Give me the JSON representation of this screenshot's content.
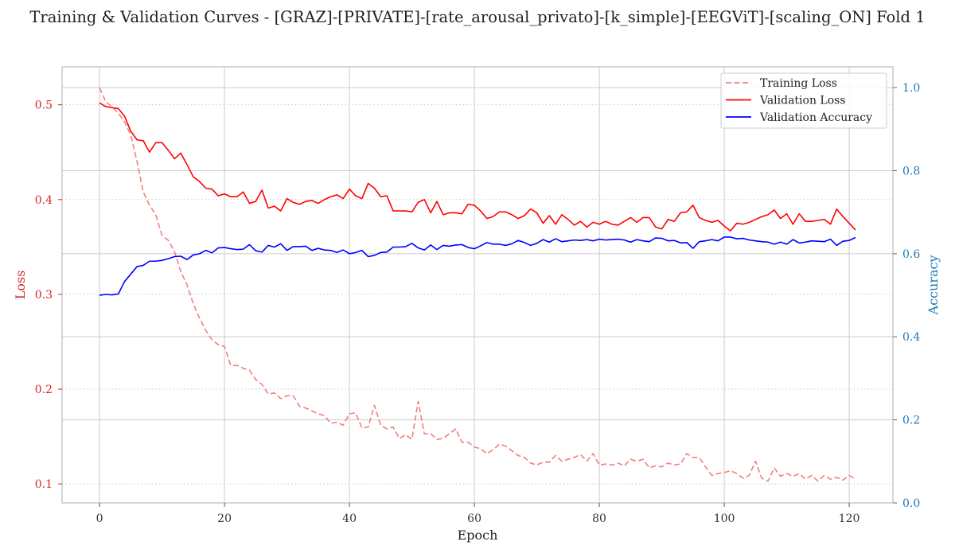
{
  "chart_data": {
    "type": "line",
    "title": "Training & Validation Curves - [GRAZ]-[PRIVATE]-[rate_arousal_privato]-[k_simple]-[EEGViT]-[scaling_ON] Fold 1",
    "xlabel": "Epoch",
    "ylabel_left": "Loss",
    "ylabel_right": "Accuracy",
    "xlim": [
      -6,
      127
    ],
    "ylim_left": [
      0.08,
      0.54
    ],
    "ylim_right": [
      0.0,
      1.05
    ],
    "xticks": [
      0,
      20,
      40,
      60,
      80,
      100,
      120
    ],
    "yticks_left": [
      0.1,
      0.2,
      0.3,
      0.4,
      0.5
    ],
    "yticks_right": [
      0.0,
      0.2,
      0.4,
      0.6,
      0.8,
      1.0
    ],
    "grid": true,
    "legend_position": "top-right",
    "colors": {
      "loss_axis": "#d62728",
      "accuracy_axis": "#1f77b4",
      "training_loss": "#f08080",
      "validation_loss": "#ff0000",
      "validation_accuracy": "#0000ff"
    },
    "series": [
      {
        "name": "Training Loss",
        "axis": "left",
        "style": "dashed",
        "x_start": 0,
        "values": [
          0.518,
          0.503,
          0.498,
          0.491,
          0.482,
          0.468,
          0.44,
          0.408,
          0.394,
          0.384,
          0.362,
          0.357,
          0.345,
          0.324,
          0.31,
          0.29,
          0.275,
          0.262,
          0.252,
          0.247,
          0.245,
          0.225,
          0.225,
          0.222,
          0.22,
          0.21,
          0.205,
          0.195,
          0.196,
          0.19,
          0.193,
          0.193,
          0.182,
          0.18,
          0.177,
          0.174,
          0.172,
          0.164,
          0.165,
          0.162,
          0.174,
          0.175,
          0.159,
          0.16,
          0.183,
          0.162,
          0.158,
          0.16,
          0.148,
          0.152,
          0.147,
          0.187,
          0.153,
          0.153,
          0.147,
          0.148,
          0.153,
          0.158,
          0.144,
          0.144,
          0.139,
          0.137,
          0.132,
          0.136,
          0.142,
          0.14,
          0.135,
          0.13,
          0.128,
          0.122,
          0.12,
          0.123,
          0.123,
          0.13,
          0.124,
          0.126,
          0.128,
          0.131,
          0.124,
          0.132,
          0.12,
          0.121,
          0.12,
          0.122,
          0.119,
          0.126,
          0.124,
          0.126,
          0.117,
          0.119,
          0.118,
          0.122,
          0.12,
          0.121,
          0.132,
          0.128,
          0.128,
          0.118,
          0.109,
          0.111,
          0.112,
          0.114,
          0.111,
          0.106,
          0.109,
          0.124,
          0.106,
          0.103,
          0.117,
          0.108,
          0.111,
          0.108,
          0.111,
          0.105,
          0.109,
          0.103,
          0.109,
          0.105,
          0.107,
          0.104,
          0.109,
          0.105
        ]
      },
      {
        "name": "Validation Loss",
        "axis": "left",
        "style": "solid",
        "x_start": 0,
        "values": [
          0.502,
          0.498,
          0.497,
          0.496,
          0.488,
          0.472,
          0.463,
          0.462,
          0.45,
          0.46,
          0.46,
          0.452,
          0.443,
          0.449,
          0.437,
          0.424,
          0.419,
          0.412,
          0.411,
          0.404,
          0.406,
          0.403,
          0.403,
          0.408,
          0.396,
          0.398,
          0.41,
          0.391,
          0.393,
          0.388,
          0.401,
          0.397,
          0.395,
          0.398,
          0.399,
          0.396,
          0.4,
          0.403,
          0.405,
          0.401,
          0.411,
          0.404,
          0.401,
          0.417,
          0.412,
          0.403,
          0.404,
          0.388,
          0.388,
          0.388,
          0.387,
          0.397,
          0.4,
          0.386,
          0.398,
          0.384,
          0.386,
          0.386,
          0.385,
          0.395,
          0.394,
          0.388,
          0.38,
          0.382,
          0.387,
          0.387,
          0.384,
          0.38,
          0.383,
          0.39,
          0.386,
          0.375,
          0.383,
          0.374,
          0.384,
          0.379,
          0.373,
          0.377,
          0.371,
          0.376,
          0.374,
          0.377,
          0.374,
          0.373,
          0.377,
          0.381,
          0.376,
          0.381,
          0.381,
          0.371,
          0.369,
          0.379,
          0.377,
          0.386,
          0.387,
          0.394,
          0.381,
          0.378,
          0.376,
          0.378,
          0.372,
          0.367,
          0.375,
          0.374,
          0.376,
          0.379,
          0.382,
          0.384,
          0.389,
          0.38,
          0.385,
          0.374,
          0.385,
          0.377,
          0.377,
          0.378,
          0.379,
          0.374,
          0.39,
          0.382,
          0.375,
          0.368
        ]
      },
      {
        "name": "Validation Accuracy",
        "axis": "right",
        "style": "solid",
        "x_start": 0,
        "values": [
          0.5,
          0.502,
          0.501,
          0.503,
          0.533,
          0.551,
          0.569,
          0.572,
          0.582,
          0.582,
          0.584,
          0.588,
          0.593,
          0.594,
          0.586,
          0.597,
          0.6,
          0.608,
          0.602,
          0.614,
          0.615,
          0.612,
          0.61,
          0.611,
          0.622,
          0.607,
          0.604,
          0.62,
          0.616,
          0.624,
          0.608,
          0.617,
          0.617,
          0.618,
          0.608,
          0.613,
          0.609,
          0.608,
          0.603,
          0.609,
          0.6,
          0.603,
          0.608,
          0.593,
          0.596,
          0.603,
          0.604,
          0.616,
          0.616,
          0.617,
          0.625,
          0.614,
          0.609,
          0.621,
          0.61,
          0.62,
          0.618,
          0.621,
          0.622,
          0.615,
          0.612,
          0.619,
          0.627,
          0.623,
          0.623,
          0.62,
          0.624,
          0.632,
          0.627,
          0.62,
          0.625,
          0.634,
          0.628,
          0.636,
          0.629,
          0.631,
          0.633,
          0.632,
          0.634,
          0.631,
          0.635,
          0.633,
          0.634,
          0.635,
          0.633,
          0.628,
          0.634,
          0.631,
          0.629,
          0.638,
          0.637,
          0.631,
          0.632,
          0.626,
          0.627,
          0.613,
          0.629,
          0.631,
          0.634,
          0.631,
          0.64,
          0.64,
          0.636,
          0.637,
          0.633,
          0.631,
          0.629,
          0.628,
          0.623,
          0.628,
          0.623,
          0.634,
          0.626,
          0.628,
          0.631,
          0.63,
          0.629,
          0.635,
          0.62,
          0.63,
          0.632,
          0.639
        ]
      }
    ]
  }
}
